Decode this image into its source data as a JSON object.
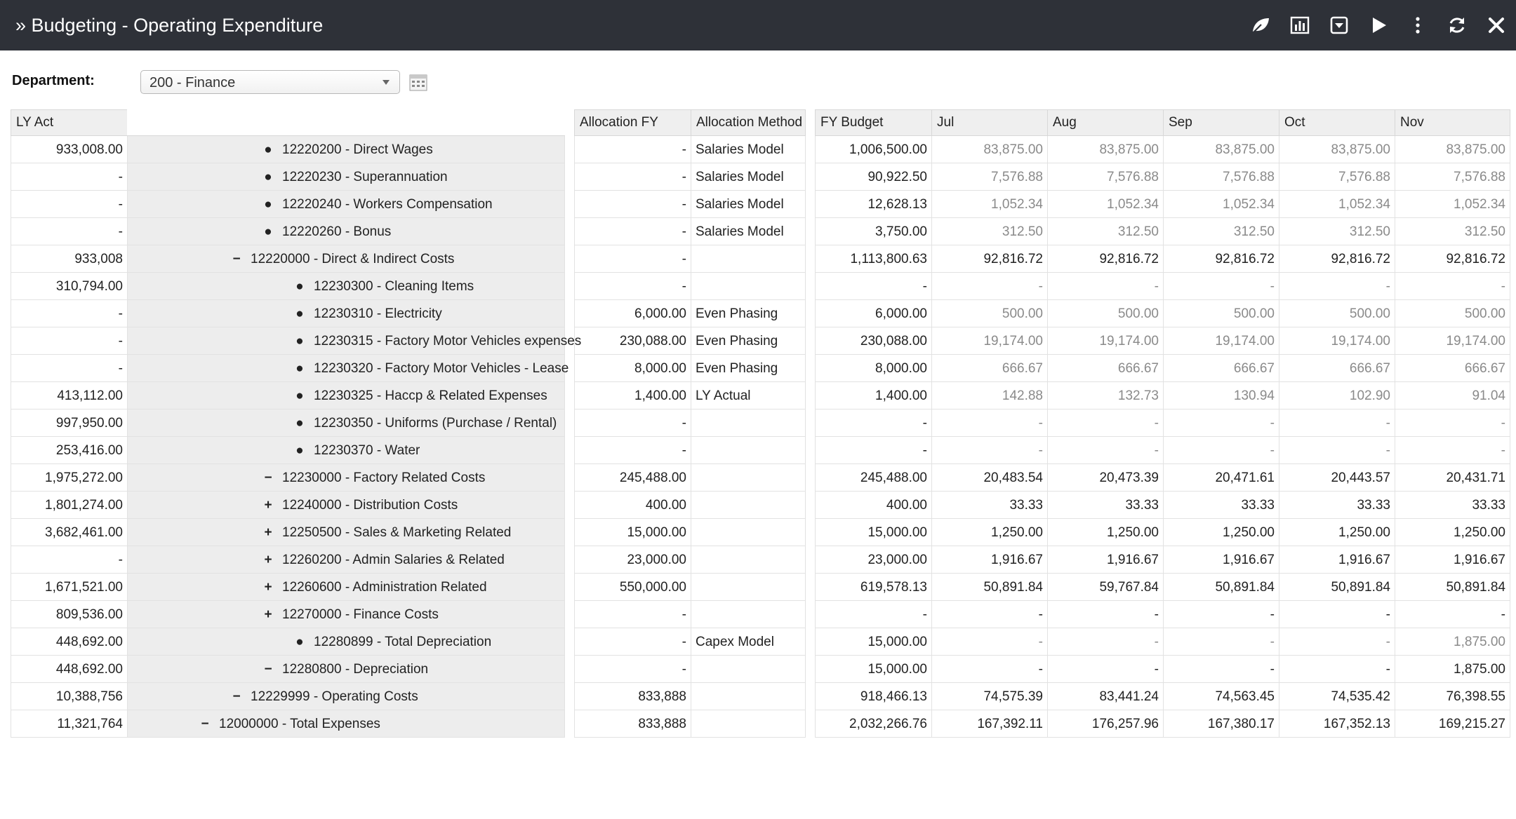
{
  "app": {
    "title": "» Budgeting - Operating Expenditure"
  },
  "toolbar": {
    "icons": [
      "leaf-icon",
      "bar-chart-icon",
      "download-icon",
      "play-icon",
      "more-vertical-icon",
      "refresh-icon",
      "close-icon"
    ]
  },
  "filter": {
    "label": "Department:",
    "value": "200 - Finance"
  },
  "headers": {
    "ly_act": "LY Act",
    "account": "",
    "alloc_fy": "Allocation FY",
    "alloc_method": "Allocation Method",
    "fy_budget": "FY Budget",
    "months": [
      "Jul",
      "Aug",
      "Sep",
      "Oct",
      "Nov"
    ]
  },
  "rows": [
    {
      "ly": "933,008.00",
      "marker": "●",
      "level": 3,
      "account": "12220200 - Direct Wages",
      "alloc": "-",
      "method": "Salaries Model",
      "fy": "1,006,500.00",
      "m": [
        "83,875.00",
        "83,875.00",
        "83,875.00",
        "83,875.00",
        "83,875.00"
      ],
      "muted": true
    },
    {
      "ly": "-",
      "marker": "●",
      "level": 3,
      "account": "12220230 - Superannuation",
      "alloc": "-",
      "method": "Salaries Model",
      "fy": "90,922.50",
      "m": [
        "7,576.88",
        "7,576.88",
        "7,576.88",
        "7,576.88",
        "7,576.88"
      ],
      "muted": true
    },
    {
      "ly": "-",
      "marker": "●",
      "level": 3,
      "account": "12220240 - Workers Compensation",
      "alloc": "-",
      "method": "Salaries Model",
      "fy": "12,628.13",
      "m": [
        "1,052.34",
        "1,052.34",
        "1,052.34",
        "1,052.34",
        "1,052.34"
      ],
      "muted": true
    },
    {
      "ly": "-",
      "marker": "●",
      "level": 3,
      "account": "12220260 - Bonus",
      "alloc": "-",
      "method": "Salaries Model",
      "fy": "3,750.00",
      "m": [
        "312.50",
        "312.50",
        "312.50",
        "312.50",
        "312.50"
      ],
      "muted": true
    },
    {
      "ly": "933,008",
      "marker": "−",
      "level": 2,
      "account": "12220000 - Direct & Indirect Costs",
      "alloc": "-",
      "method": "",
      "fy": "1,113,800.63",
      "m": [
        "92,816.72",
        "92,816.72",
        "92,816.72",
        "92,816.72",
        "92,816.72"
      ],
      "muted": false
    },
    {
      "ly": "310,794.00",
      "marker": "●",
      "level": 4,
      "account": "12230300 - Cleaning Items",
      "alloc": "-",
      "method": "",
      "fy": "-",
      "m": [
        "-",
        "-",
        "-",
        "-",
        "-"
      ],
      "muted": true
    },
    {
      "ly": "-",
      "marker": "●",
      "level": 4,
      "account": "12230310 - Electricity",
      "alloc": "6,000.00",
      "method": "Even Phasing",
      "fy": "6,000.00",
      "m": [
        "500.00",
        "500.00",
        "500.00",
        "500.00",
        "500.00"
      ],
      "muted": true
    },
    {
      "ly": "-",
      "marker": "●",
      "level": 4,
      "account": "12230315 - Factory Motor Vehicles expenses",
      "alloc": "230,088.00",
      "method": "Even Phasing",
      "fy": "230,088.00",
      "m": [
        "19,174.00",
        "19,174.00",
        "19,174.00",
        "19,174.00",
        "19,174.00"
      ],
      "muted": true
    },
    {
      "ly": "-",
      "marker": "●",
      "level": 4,
      "account": "12230320 - Factory Motor Vehicles - Lease",
      "alloc": "8,000.00",
      "method": "Even Phasing",
      "fy": "8,000.00",
      "m": [
        "666.67",
        "666.67",
        "666.67",
        "666.67",
        "666.67"
      ],
      "muted": true
    },
    {
      "ly": "413,112.00",
      "marker": "●",
      "level": 4,
      "account": "12230325 - Haccp & Related Expenses",
      "alloc": "1,400.00",
      "method": "LY Actual",
      "fy": "1,400.00",
      "m": [
        "142.88",
        "132.73",
        "130.94",
        "102.90",
        "91.04"
      ],
      "muted": true
    },
    {
      "ly": "997,950.00",
      "marker": "●",
      "level": 4,
      "account": "12230350 - Uniforms (Purchase / Rental)",
      "alloc": "-",
      "method": "",
      "fy": "-",
      "m": [
        "-",
        "-",
        "-",
        "-",
        "-"
      ],
      "muted": true
    },
    {
      "ly": "253,416.00",
      "marker": "●",
      "level": 4,
      "account": "12230370 - Water",
      "alloc": "-",
      "method": "",
      "fy": "-",
      "m": [
        "-",
        "-",
        "-",
        "-",
        "-"
      ],
      "muted": true
    },
    {
      "ly": "1,975,272.00",
      "marker": "−",
      "level": 3,
      "account": "12230000 - Factory Related Costs",
      "alloc": "245,488.00",
      "method": "",
      "fy": "245,488.00",
      "m": [
        "20,483.54",
        "20,473.39",
        "20,471.61",
        "20,443.57",
        "20,431.71"
      ],
      "muted": false
    },
    {
      "ly": "1,801,274.00",
      "marker": "+",
      "level": 3,
      "account": "12240000 - Distribution Costs",
      "alloc": "400.00",
      "method": "",
      "fy": "400.00",
      "m": [
        "33.33",
        "33.33",
        "33.33",
        "33.33",
        "33.33"
      ],
      "muted": false
    },
    {
      "ly": "3,682,461.00",
      "marker": "+",
      "level": 3,
      "account": "12250500 - Sales & Marketing Related",
      "alloc": "15,000.00",
      "method": "",
      "fy": "15,000.00",
      "m": [
        "1,250.00",
        "1,250.00",
        "1,250.00",
        "1,250.00",
        "1,250.00"
      ],
      "muted": false
    },
    {
      "ly": "-",
      "marker": "+",
      "level": 3,
      "account": "12260200 - Admin Salaries & Related",
      "alloc": "23,000.00",
      "method": "",
      "fy": "23,000.00",
      "m": [
        "1,916.67",
        "1,916.67",
        "1,916.67",
        "1,916.67",
        "1,916.67"
      ],
      "muted": false
    },
    {
      "ly": "1,671,521.00",
      "marker": "+",
      "level": 3,
      "account": "12260600 - Administration Related",
      "alloc": "550,000.00",
      "method": "",
      "fy": "619,578.13",
      "m": [
        "50,891.84",
        "59,767.84",
        "50,891.84",
        "50,891.84",
        "50,891.84"
      ],
      "muted": false
    },
    {
      "ly": "809,536.00",
      "marker": "+",
      "level": 3,
      "account": "12270000 - Finance Costs",
      "alloc": "-",
      "method": "",
      "fy": "-",
      "m": [
        "-",
        "-",
        "-",
        "-",
        "-"
      ],
      "muted": false
    },
    {
      "ly": "448,692.00",
      "marker": "●",
      "level": 4,
      "account": "12280899 - Total Depreciation",
      "alloc": "-",
      "method": "Capex Model",
      "fy": "15,000.00",
      "m": [
        "-",
        "-",
        "-",
        "-",
        "1,875.00"
      ],
      "muted": true
    },
    {
      "ly": "448,692.00",
      "marker": "−",
      "level": 3,
      "account": "12280800 - Depreciation",
      "alloc": "-",
      "method": "",
      "fy": "15,000.00",
      "m": [
        "-",
        "-",
        "-",
        "-",
        "1,875.00"
      ],
      "muted": false
    },
    {
      "ly": "10,388,756",
      "marker": "−",
      "level": 2,
      "account": "12229999 - Operating Costs",
      "alloc": "833,888",
      "method": "",
      "fy": "918,466.13",
      "m": [
        "74,575.39",
        "83,441.24",
        "74,563.45",
        "74,535.42",
        "76,398.55"
      ],
      "muted": false
    },
    {
      "ly": "11,321,764",
      "marker": "−",
      "level": 1,
      "account": "12000000 - Total Expenses",
      "alloc": "833,888",
      "method": "",
      "fy": "2,032,266.76",
      "m": [
        "167,392.11",
        "176,257.96",
        "167,380.17",
        "167,352.13",
        "169,215.27"
      ],
      "muted": false
    }
  ]
}
